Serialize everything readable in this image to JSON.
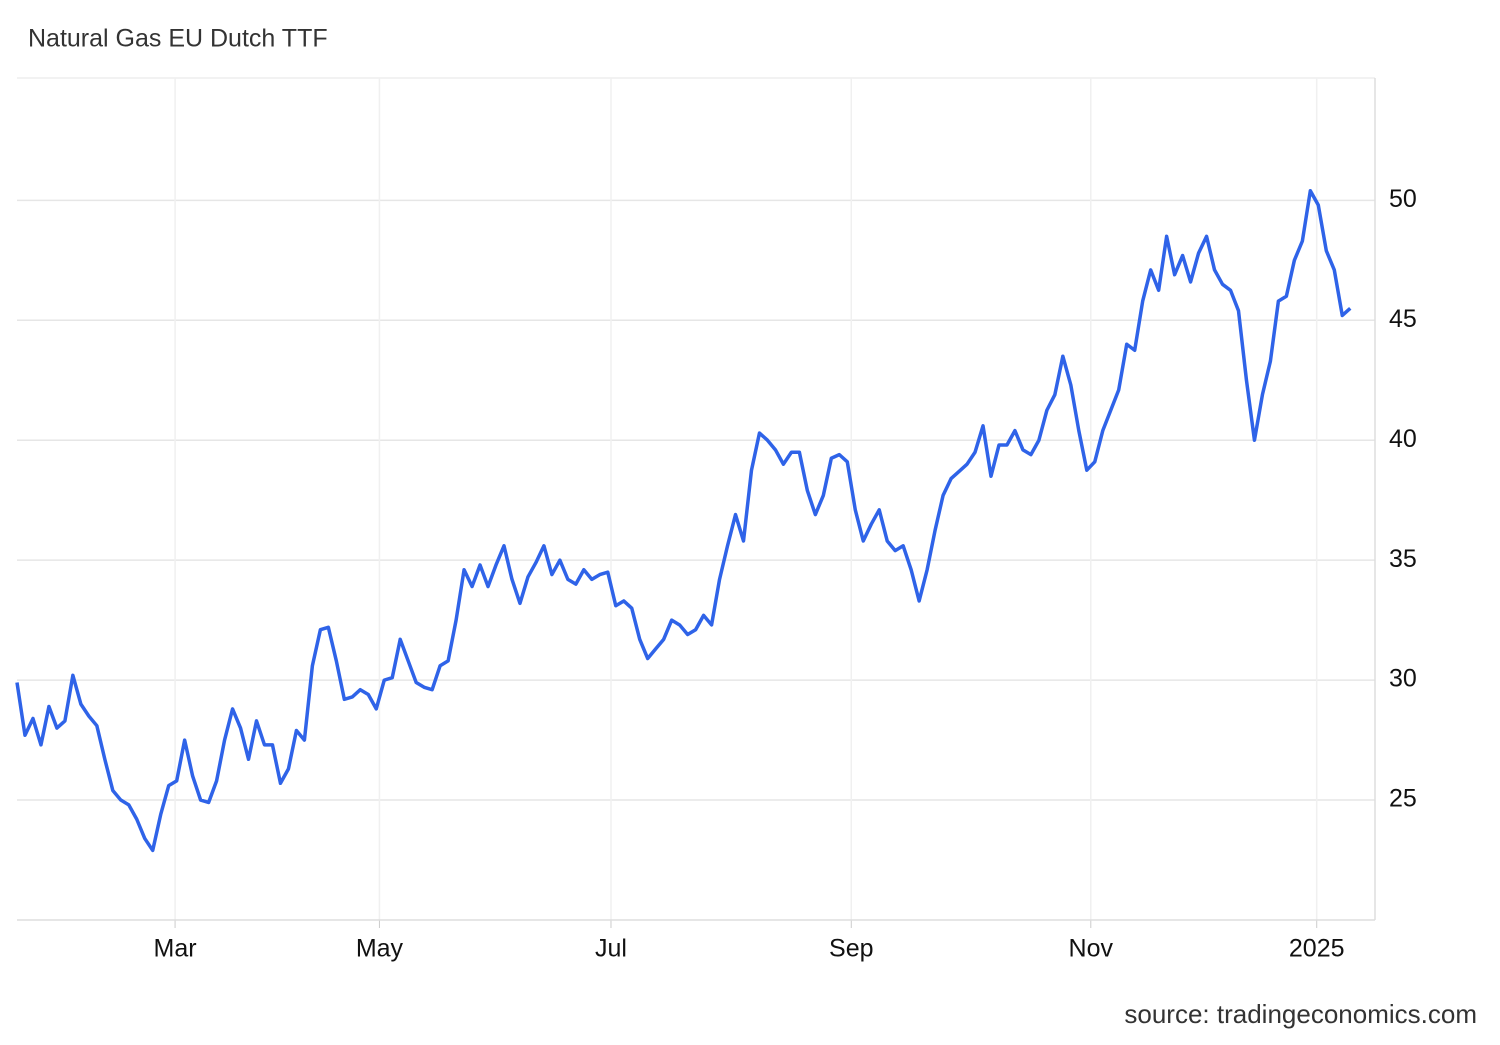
{
  "chart_data": {
    "type": "line",
    "title": "Natural Gas EU Dutch TTF",
    "source": "source: tradingeconomics.com",
    "series": [
      {
        "name": "Natural Gas EU Dutch TTF",
        "color": "#2f63e8",
        "values": [
          29.9,
          27.7,
          28.4,
          27.3,
          28.9,
          28.0,
          28.3,
          30.2,
          29.0,
          28.5,
          28.1,
          26.7,
          25.4,
          25.0,
          24.8,
          24.2,
          23.4,
          22.9,
          24.4,
          25.6,
          25.8,
          27.5,
          26.0,
          25.0,
          24.9,
          25.8,
          27.5,
          28.8,
          28.0,
          26.7,
          28.3,
          27.3,
          27.3,
          25.7,
          26.3,
          27.9,
          27.5,
          30.6,
          32.1,
          32.2,
          30.8,
          29.2,
          29.3,
          29.6,
          29.4,
          28.8,
          30.0,
          30.1,
          31.7,
          30.8,
          29.9,
          29.7,
          29.6,
          30.6,
          30.8,
          32.5,
          34.6,
          33.9,
          34.8,
          33.9,
          34.8,
          35.6,
          34.2,
          33.2,
          34.3,
          34.9,
          35.6,
          34.4,
          35.0,
          34.2,
          34.0,
          34.6,
          34.2,
          34.4,
          34.5,
          33.1,
          33.3,
          33.0,
          31.7,
          30.9,
          31.3,
          31.7,
          32.5,
          32.3,
          31.9,
          32.1,
          32.7,
          32.3,
          34.2,
          35.6,
          36.9,
          35.8,
          38.75,
          40.3,
          40.0,
          39.6,
          39.0,
          39.5,
          39.5,
          37.9,
          36.9,
          37.7,
          39.25,
          39.4,
          39.1,
          37.1,
          35.8,
          36.5,
          37.1,
          35.8,
          35.4,
          35.6,
          34.6,
          33.3,
          34.6,
          36.25,
          37.7,
          38.4,
          38.7,
          39.0,
          39.5,
          40.6,
          38.5,
          39.8,
          39.8,
          40.4,
          39.6,
          39.4,
          40.0,
          41.25,
          41.9,
          43.5,
          42.3,
          40.4,
          38.75,
          39.1,
          40.4,
          41.25,
          42.1,
          44.0,
          43.75,
          45.8,
          47.1,
          46.25,
          48.5,
          46.9,
          47.7,
          46.6,
          47.8,
          48.5,
          47.1,
          46.5,
          46.25,
          45.4,
          42.5,
          40.0,
          41.9,
          43.3,
          45.8,
          46.0,
          47.5,
          48.3,
          50.4,
          49.8,
          47.9,
          47.1,
          45.2,
          45.5
        ]
      }
    ],
    "xlim": [
      0,
      170.1
    ],
    "xticks": [
      {
        "value": 19.8,
        "label": "Mar"
      },
      {
        "value": 45.4,
        "label": "May"
      },
      {
        "value": 74.4,
        "label": "Jul"
      },
      {
        "value": 104.5,
        "label": "Sep"
      },
      {
        "value": 134.5,
        "label": "Nov"
      },
      {
        "value": 162.8,
        "label": "2025"
      }
    ],
    "ylim": [
      20,
      55.1
    ],
    "yticks": [
      25,
      30,
      35,
      40,
      45,
      50
    ],
    "grid": true
  }
}
